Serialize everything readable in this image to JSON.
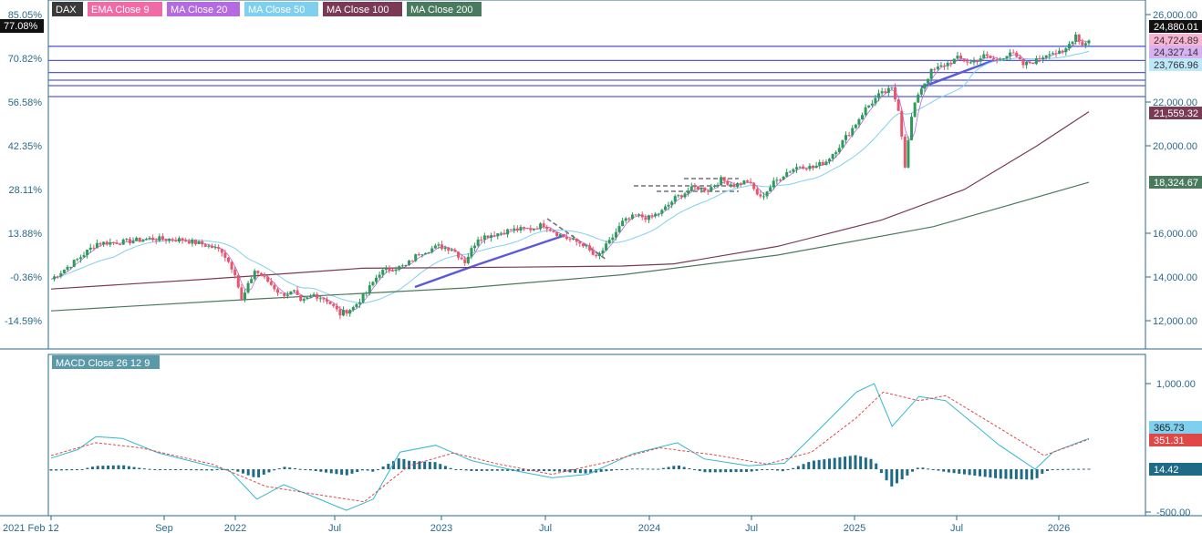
{
  "chart_data": [
    {
      "type": "candlestick",
      "panel": "price",
      "symbol": "DAX",
      "legend": [
        {
          "name": "DAX",
          "color": "#3a3a3a"
        },
        {
          "name": "EMA  Close 9",
          "color": "#f06aa6"
        },
        {
          "name": "MA  Close 20",
          "color": "#b46ae0"
        },
        {
          "name": "MA  Close 50",
          "color": "#7fd0ee"
        },
        {
          "name": "MA  Close 100",
          "color": "#7a3a56"
        },
        {
          "name": "MA  Close 200",
          "color": "#4a7a5e"
        }
      ],
      "y_right_ticks": [
        "26,000.00",
        "22,000.00",
        "20,000.00",
        "16,000.00",
        "14,000.00",
        "12,000.00"
      ],
      "y_right_tick_values": [
        26000,
        22000,
        20000,
        16000,
        14000,
        12000
      ],
      "y_left_ticks": [
        "85.05%",
        "70.82%",
        "56.58%",
        "42.35%",
        "28.11%",
        "13.88%",
        "-0.36%",
        "-14.59%"
      ],
      "y_left_tick_values": [
        85.05,
        70.82,
        56.58,
        42.35,
        28.11,
        13.88,
        -0.36,
        -14.59
      ],
      "current_percent": "77.08%",
      "last_values": [
        {
          "label": "24,880.01",
          "value": 24880.01,
          "bg": "#111111",
          "fg": "#ffffff"
        },
        {
          "label": "24,724.89",
          "value": 24724.89,
          "bg": "#f8b4d2",
          "fg": "#333333"
        },
        {
          "label": "24,327.14",
          "value": 24327.14,
          "bg": "#d8b2f0",
          "fg": "#333333"
        },
        {
          "label": "23,766.96",
          "value": 23766.96,
          "bg": "#bde8f8",
          "fg": "#333333"
        },
        {
          "label": "21,559.32",
          "value": 21559.32,
          "bg": "#7a3a56",
          "fg": "#ffffff"
        },
        {
          "label": "18,324.67",
          "value": 18324.67,
          "bg": "#4a7a5e",
          "fg": "#ffffff"
        }
      ],
      "horizontal_levels": [
        24550,
        23900,
        23350,
        23000,
        22750,
        22250
      ],
      "ma_values": {
        "ma100": [
          [
            0,
            13450
          ],
          [
            0.15,
            13900
          ],
          [
            0.3,
            14400
          ],
          [
            0.45,
            14450
          ],
          [
            0.55,
            14500
          ],
          [
            0.6,
            14600
          ],
          [
            0.7,
            15400
          ],
          [
            0.8,
            16600
          ],
          [
            0.88,
            18000
          ],
          [
            0.95,
            20000
          ],
          [
            1.0,
            21560
          ]
        ],
        "ma200": [
          [
            0,
            12450
          ],
          [
            0.2,
            13000
          ],
          [
            0.4,
            13500
          ],
          [
            0.55,
            14100
          ],
          [
            0.7,
            15000
          ],
          [
            0.85,
            16300
          ],
          [
            1.0,
            18330
          ]
        ]
      }
    },
    {
      "type": "macd",
      "panel": "indicator",
      "title": "MACD  Close 26 12 9",
      "y_ticks": [
        "1,000.00",
        "-500.00"
      ],
      "y_tick_values": [
        1000,
        -500
      ],
      "last_values": [
        {
          "label": "365.73",
          "value": 365.73,
          "bg": "#7fd0ee",
          "fg": "#222222"
        },
        {
          "label": "351.31",
          "value": 351.31,
          "bg": "#e04848",
          "fg": "#ffffff"
        },
        {
          "label": "14.42",
          "value": 14.42,
          "bg": "#1e6b88",
          "fg": "#ffffff"
        }
      ],
      "macd_line": [
        [
          0,
          130
        ],
        [
          0.03,
          230
        ],
        [
          0.05,
          380
        ],
        [
          0.08,
          360
        ],
        [
          0.12,
          190
        ],
        [
          0.2,
          -20
        ],
        [
          0.23,
          -350
        ],
        [
          0.26,
          -180
        ],
        [
          0.3,
          -350
        ],
        [
          0.33,
          -480
        ],
        [
          0.36,
          -350
        ],
        [
          0.39,
          200
        ],
        [
          0.43,
          280
        ],
        [
          0.47,
          100
        ],
        [
          0.52,
          -20
        ],
        [
          0.56,
          -100
        ],
        [
          0.6,
          -60
        ],
        [
          0.65,
          180
        ],
        [
          0.7,
          310
        ],
        [
          0.73,
          120
        ],
        [
          0.78,
          40
        ],
        [
          0.82,
          70
        ],
        [
          0.86,
          480
        ],
        [
          0.9,
          900
        ],
        [
          0.92,
          1000
        ],
        [
          0.94,
          500
        ],
        [
          0.97,
          850
        ],
        [
          1.0,
          800
        ],
        [
          1.06,
          280
        ],
        [
          1.1,
          0
        ],
        [
          1.12,
          200
        ],
        [
          1.16,
          360
        ]
      ],
      "signal_line": [
        [
          0,
          160
        ],
        [
          0.05,
          310
        ],
        [
          0.1,
          250
        ],
        [
          0.18,
          60
        ],
        [
          0.24,
          -200
        ],
        [
          0.3,
          -300
        ],
        [
          0.35,
          -380
        ],
        [
          0.4,
          40
        ],
        [
          0.45,
          190
        ],
        [
          0.5,
          60
        ],
        [
          0.56,
          -60
        ],
        [
          0.62,
          80
        ],
        [
          0.68,
          250
        ],
        [
          0.74,
          170
        ],
        [
          0.8,
          60
        ],
        [
          0.85,
          200
        ],
        [
          0.9,
          600
        ],
        [
          0.93,
          900
        ],
        [
          0.97,
          800
        ],
        [
          1.0,
          860
        ],
        [
          1.06,
          480
        ],
        [
          1.11,
          160
        ],
        [
          1.16,
          350
        ]
      ]
    }
  ],
  "x_axis": {
    "labels": [
      "2021 Feb 12",
      "Sep",
      "2022",
      "Jul",
      "2023",
      "Jul",
      "2024",
      "Jul",
      "2025",
      "Jul",
      "2026"
    ]
  },
  "colors": {
    "bull": "#2e9a5c",
    "bear": "#e8566c",
    "level": "#5a5adc",
    "macd": "#2fb8cf",
    "signal": "#e04848",
    "histogram": "#1e6b88",
    "axis": "#2a6a8a"
  }
}
